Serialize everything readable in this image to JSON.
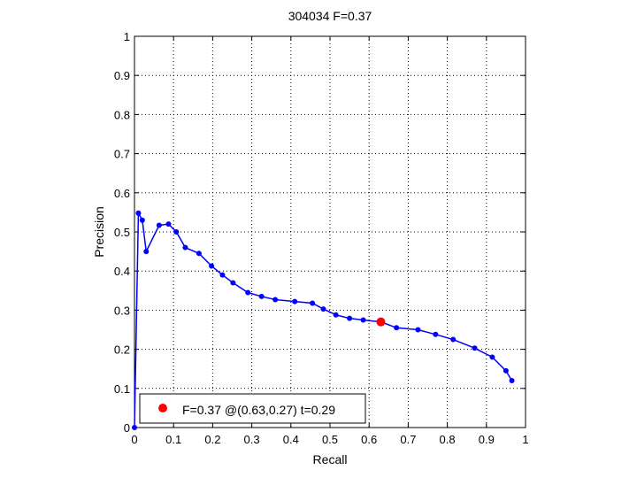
{
  "chart_data": {
    "type": "line",
    "title": "304034 F=0.37",
    "xlabel": "Recall",
    "ylabel": "Precision",
    "xlim": [
      0,
      1
    ],
    "ylim": [
      0,
      1
    ],
    "xticks": [
      0,
      0.1,
      0.2,
      0.3,
      0.4,
      0.5,
      0.6,
      0.7,
      0.8,
      0.9,
      1
    ],
    "yticks": [
      0,
      0.1,
      0.2,
      0.3,
      0.4,
      0.5,
      0.6,
      0.7,
      0.8,
      0.9,
      1
    ],
    "xtick_labels": [
      "0",
      "0.1",
      "0.2",
      "0.3",
      "0.4",
      "0.5",
      "0.6",
      "0.7",
      "0.8",
      "0.9",
      "1"
    ],
    "ytick_labels": [
      "0",
      "0.1",
      "0.2",
      "0.3",
      "0.4",
      "0.5",
      "0.6",
      "0.7",
      "0.8",
      "0.9",
      "1"
    ],
    "grid": true,
    "legend_placement": "bottom-left",
    "series": [
      {
        "color": "#0000ff",
        "x": [
          0.0,
          0.01,
          0.02,
          0.03,
          0.063,
          0.087,
          0.107,
          0.13,
          0.165,
          0.197,
          0.225,
          0.252,
          0.29,
          0.325,
          0.36,
          0.41,
          0.455,
          0.483,
          0.515,
          0.55,
          0.585,
          0.63,
          0.67,
          0.725,
          0.77,
          0.815,
          0.87,
          0.915,
          0.95,
          0.965
        ],
        "y": [
          0.0,
          0.548,
          0.53,
          0.45,
          0.517,
          0.52,
          0.5,
          0.46,
          0.445,
          0.413,
          0.39,
          0.37,
          0.345,
          0.335,
          0.327,
          0.322,
          0.318,
          0.303,
          0.288,
          0.279,
          0.275,
          0.27,
          0.255,
          0.25,
          0.238,
          0.225,
          0.203,
          0.18,
          0.145,
          0.12
        ]
      }
    ],
    "highlight": {
      "x": 0.63,
      "y": 0.27,
      "color": "#ff0000",
      "label": "F=0.37 @(0.63,0.27) t=0.29"
    }
  }
}
